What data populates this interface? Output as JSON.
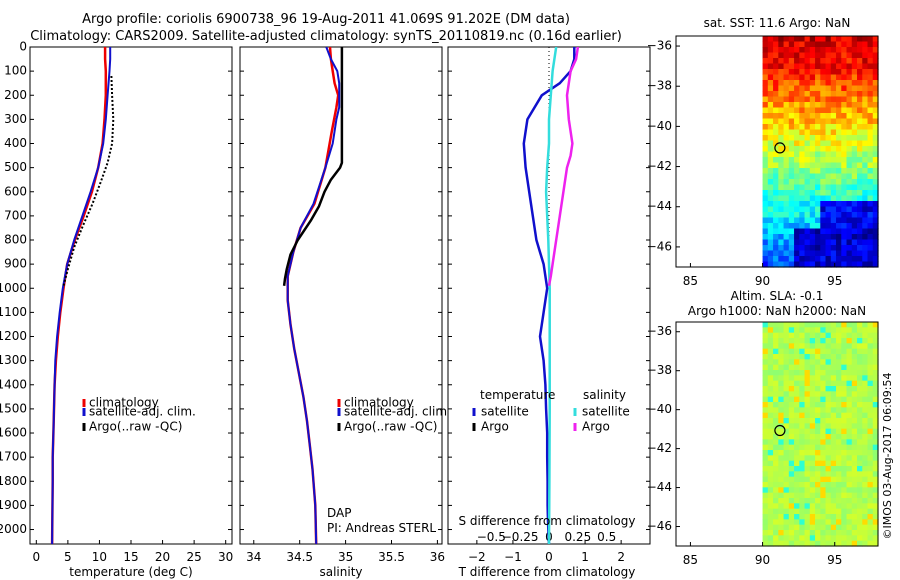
{
  "header": {
    "title_line1": "Argo profile: coriolis 6900738_96 19-Aug-2011 41.069S 91.202E (DM data)",
    "title_line2": "Climatology: CARS2009. Satellite-adjusted climatology: synTS_20110819.nc (0.16d earlier)"
  },
  "legend": {
    "climatology": "climatology",
    "satellite_adj": "satellite-adj. clim.",
    "argo_raw": "Argo(..raw -QC)",
    "temperature_header": "temperature",
    "salinity_header": "salinity",
    "satellite": "satellite",
    "argo": "Argo"
  },
  "attribution": {
    "dap": "DAP",
    "pi": "PI: Andreas STERL"
  },
  "footer": {
    "imos": "©IMOS 03-Aug-2017 06:09:54"
  },
  "colors": {
    "climatology": "#ee0000",
    "satellite": "#1010cc",
    "argo": "#000000",
    "sal_satellite": "#33dddd",
    "sal_argo": "#ee22ee"
  },
  "chart_data": [
    {
      "type": "line",
      "name": "temperature-profile",
      "xlabel": "temperature (deg C)",
      "xlim": [
        -1,
        31
      ],
      "ylim": [
        2060,
        0
      ],
      "xticks": [
        0,
        5,
        10,
        15,
        20,
        25,
        30
      ],
      "yticks": [
        0,
        100,
        200,
        300,
        400,
        500,
        600,
        700,
        800,
        900,
        1000,
        1100,
        1200,
        1300,
        1400,
        1500,
        1600,
        1700,
        1800,
        1900,
        2000
      ],
      "series": [
        {
          "name": "climatology",
          "color": "#ee0000",
          "width": 2.5,
          "x": [
            10.9,
            10.9,
            11.0,
            11.0,
            10.8,
            10.5,
            9.8,
            8.8,
            7.5,
            6.1,
            4.9,
            4.3,
            3.8,
            3.4,
            3.1,
            2.9,
            2.8,
            2.7,
            2.6,
            2.6,
            2.5
          ],
          "y": [
            0,
            50,
            100,
            200,
            300,
            400,
            500,
            600,
            700,
            800,
            900,
            1000,
            1100,
            1200,
            1300,
            1400,
            1500,
            1600,
            1700,
            1800,
            2060
          ]
        },
        {
          "name": "satellite-adj. clim.",
          "color": "#1010cc",
          "width": 2,
          "x": [
            11.7,
            11.7,
            11.6,
            11.3,
            11.0,
            10.6,
            9.8,
            8.6,
            7.3,
            6.0,
            4.9,
            4.2,
            3.7,
            3.3,
            3.0,
            2.9,
            2.8,
            2.7,
            2.6,
            2.6,
            2.5
          ],
          "y": [
            0,
            50,
            100,
            200,
            300,
            400,
            500,
            600,
            700,
            800,
            900,
            1000,
            1100,
            1200,
            1300,
            1400,
            1500,
            1600,
            1700,
            1800,
            2060
          ]
        },
        {
          "name": "Argo(..raw -QC)",
          "color": "#000000",
          "width": 2,
          "dash": "2,2",
          "x": [
            11.9,
            12.0,
            12.2,
            12.0,
            11.3,
            10.2,
            8.9,
            7.4,
            6.0,
            5.0,
            4.3
          ],
          "y": [
            120,
            200,
            300,
            400,
            480,
            560,
            650,
            740,
            830,
            920,
            990
          ]
        }
      ]
    },
    {
      "type": "line",
      "name": "salinity-profile",
      "xlabel": "salinity",
      "attribution": "DAP / PI: Andreas STERL",
      "xlim": [
        33.85,
        36.05
      ],
      "ylim": [
        2060,
        0
      ],
      "xticks": [
        34,
        34.5,
        35,
        35.5,
        36
      ],
      "xticklabels": [
        "34",
        "34.5",
        "35",
        "35.5",
        "36"
      ],
      "series": [
        {
          "name": "climatology",
          "color": "#ee0000",
          "width": 2.5,
          "x": [
            34.83,
            34.84,
            34.86,
            34.88,
            34.92,
            34.9,
            34.85,
            34.78,
            34.66,
            34.51,
            34.43,
            34.37,
            34.37,
            34.4,
            34.44,
            34.49,
            34.54,
            34.58,
            34.61,
            34.64,
            34.67,
            34.68
          ],
          "y": [
            0,
            50,
            100,
            150,
            200,
            250,
            350,
            500,
            650,
            750,
            850,
            950,
            1050,
            1150,
            1250,
            1350,
            1450,
            1550,
            1650,
            1750,
            1900,
            2060
          ]
        },
        {
          "name": "satellite-adj. clim.",
          "color": "#1010cc",
          "width": 2,
          "x": [
            34.79,
            34.84,
            34.91,
            34.93,
            34.93,
            34.93,
            34.9,
            34.86,
            34.78,
            34.65,
            34.51,
            34.43,
            34.37,
            34.37,
            34.4,
            34.44,
            34.49,
            34.54,
            34.58,
            34.61,
            34.64,
            34.67,
            34.68
          ],
          "y": [
            0,
            50,
            100,
            150,
            200,
            250,
            300,
            400,
            500,
            650,
            750,
            850,
            950,
            1050,
            1150,
            1250,
            1350,
            1450,
            1550,
            1650,
            1750,
            1900,
            2060
          ]
        },
        {
          "name": "Argo(..raw -QC)",
          "color": "#000000",
          "width": 2.5,
          "x": [
            34.96,
            34.96,
            34.96,
            34.96,
            34.96,
            34.96,
            34.96,
            34.96,
            34.94,
            34.84,
            34.77,
            34.71,
            34.62,
            34.48,
            34.4,
            34.36,
            34.34,
            34.33
          ],
          "y": [
            0,
            100,
            200,
            300,
            400,
            430,
            450,
            480,
            500,
            550,
            600,
            660,
            720,
            800,
            860,
            920,
            960,
            990
          ]
        }
      ]
    },
    {
      "type": "line",
      "name": "difference-profile",
      "xlabel": "T difference from climatology",
      "top_xlabel": "S difference from climatology",
      "xlim": [
        -2.8,
        2.8
      ],
      "ylim": [
        2060,
        0
      ],
      "xticks": [
        -2,
        -1,
        0,
        1,
        2
      ],
      "top_xticks": [
        -1.6,
        -0.8,
        0,
        0.8,
        1.6
      ],
      "top_xticklabels": [
        "-0.5",
        "-0.25",
        "0",
        "0.25",
        "0.5"
      ],
      "series": [
        {
          "name": "temperature satellite",
          "color": "#1010cc",
          "width": 2.5,
          "x": [
            0.7,
            0.7,
            0.6,
            0.3,
            -0.2,
            -0.6,
            -0.7,
            -0.65,
            -0.55,
            -0.45,
            -0.35,
            -0.25,
            -0.15,
            -0.1,
            -0.05,
            -0.1,
            -0.15,
            -0.2,
            -0.25,
            -0.15,
            -0.1,
            -0.08,
            -0.05,
            -0.05,
            -0.04,
            -0.04,
            -0.03,
            -0.02,
            -0.01,
            0
          ],
          "y": [
            0,
            50,
            100,
            150,
            200,
            300,
            400,
            500,
            600,
            700,
            800,
            850,
            900,
            950,
            1000,
            1050,
            1100,
            1150,
            1200,
            1300,
            1400,
            1500,
            1600,
            1700,
            1800,
            1900,
            1950,
            2000,
            2030,
            2060
          ]
        },
        {
          "name": "salinity satellite",
          "color": "#33dddd",
          "width": 2.5,
          "x": [
            0.2,
            0.1,
            0.05,
            0.0,
            0.0,
            -0.05,
            -0.08,
            -0.05,
            -0.02,
            0.0,
            0.02,
            0.02,
            0.02,
            0.01,
            0.0
          ],
          "y": [
            0,
            100,
            200,
            300,
            400,
            500,
            600,
            700,
            800,
            900,
            1000,
            1200,
            1500,
            1800,
            2060
          ]
        },
        {
          "name": "salinity Argo",
          "color": "#ee22ee",
          "width": 2.5,
          "x": [
            0.8,
            0.75,
            0.6,
            0.5,
            0.55,
            0.65,
            0.6,
            0.5,
            0.4,
            0.3,
            0.2,
            0.1,
            0.05,
            0.0
          ],
          "y": [
            0,
            50,
            100,
            200,
            300,
            400,
            450,
            500,
            600,
            700,
            800,
            900,
            950,
            990
          ]
        }
      ]
    },
    {
      "type": "heatmap",
      "name": "sst-map",
      "title": "sat. SST: 11.6 Argo: NaN",
      "xlim": [
        84,
        98
      ],
      "ylim": [
        -47,
        -35.5
      ],
      "xticks": [
        85,
        90,
        95
      ],
      "yticks": [
        -36,
        -38,
        -40,
        -42,
        -44,
        -46
      ],
      "argo_position": [
        91.2,
        -41.07
      ]
    },
    {
      "type": "heatmap",
      "name": "sla-map",
      "title": "Altim. SLA: -0.1",
      "subtitle": "Argo h1000: NaN h2000: NaN",
      "xlim": [
        84,
        98
      ],
      "ylim": [
        -47,
        -35.5
      ],
      "xticks": [
        85,
        90,
        95
      ],
      "yticks": [
        -36,
        -38,
        -40,
        -42,
        -44,
        -46
      ],
      "argo_position": [
        91.2,
        -41.07
      ]
    }
  ]
}
